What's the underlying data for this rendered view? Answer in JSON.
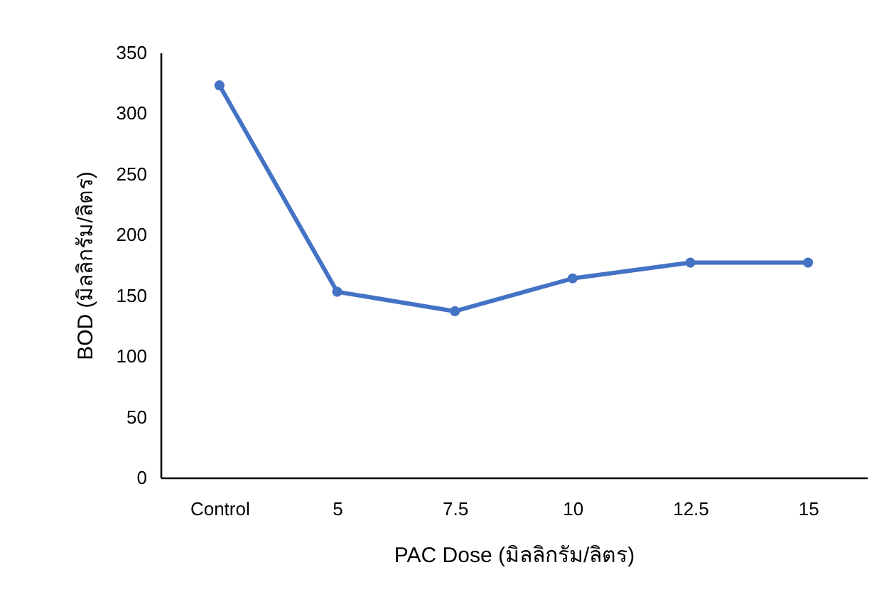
{
  "chart_data": {
    "type": "line",
    "xlabel": "PAC Dose (มิลลิกรัม/ลิตร)",
    "ylabel": "BOD (มิลลิกรัม/ลิตร)",
    "categories": [
      "Control",
      "5",
      "7.5",
      "10",
      "12.5",
      "15"
    ],
    "series": [
      {
        "color": "#4472c4",
        "values": [
          323,
          153,
          137,
          164,
          177,
          177
        ]
      }
    ],
    "ylim": [
      0,
      350
    ],
    "yticks": [
      0,
      50,
      100,
      150,
      200,
      250,
      300,
      350
    ],
    "grid": false,
    "legend": false,
    "marker": "circle"
  }
}
